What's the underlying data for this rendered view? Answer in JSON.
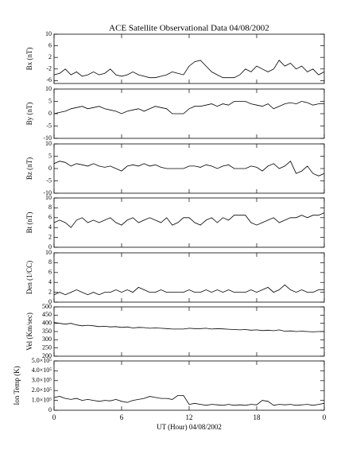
{
  "chart_data": [
    {
      "type": "line",
      "title": "ACE Satellite Observational Data   04/08/2002",
      "ylabel": "Bx (nT)",
      "ylim": [
        -7,
        10
      ],
      "yticks": [
        10,
        6,
        2,
        -2,
        -6
      ],
      "xlim": [
        0,
        24
      ],
      "color": "#000000",
      "x": [
        0,
        0.5,
        1,
        1.5,
        2,
        2.5,
        3,
        3.5,
        4,
        4.5,
        5,
        5.5,
        6,
        6.5,
        7,
        7.5,
        8,
        8.5,
        9,
        9.5,
        10,
        10.5,
        11,
        11.5,
        12,
        12.5,
        13,
        13.5,
        14,
        14.5,
        15,
        15.5,
        16,
        16.5,
        17,
        17.5,
        18,
        18.5,
        19,
        19.5,
        20,
        20.5,
        21,
        21.5,
        22,
        22.5,
        23,
        23.5,
        24
      ],
      "values": [
        -4,
        -3.5,
        -2,
        -4,
        -3,
        -4.5,
        -4,
        -3,
        -4,
        -3.5,
        -2,
        -4,
        -4.5,
        -4,
        -3,
        -4,
        -4.5,
        -5,
        -5,
        -4.5,
        -4,
        -3,
        -3.5,
        -4,
        -1,
        0.5,
        1,
        -1,
        -3,
        -4,
        -5,
        -5,
        -5,
        -4,
        -2,
        -3,
        -1,
        -2,
        -3,
        -2,
        1,
        -1,
        0,
        -2,
        -1,
        -3,
        -2,
        -4,
        -3
      ]
    },
    {
      "type": "line",
      "ylabel": "By (nT)",
      "ylim": [
        -10,
        10
      ],
      "yticks": [
        10,
        5,
        0,
        -5,
        -10
      ],
      "xlim": [
        0,
        24
      ],
      "color": "#000000",
      "x": [
        0,
        0.5,
        1,
        1.5,
        2,
        2.5,
        3,
        3.5,
        4,
        4.5,
        5,
        5.5,
        6,
        6.5,
        7,
        7.5,
        8,
        8.5,
        9,
        9.5,
        10,
        10.5,
        11,
        11.5,
        12,
        12.5,
        13,
        13.5,
        14,
        14.5,
        15,
        15.5,
        16,
        16.5,
        17,
        17.5,
        18,
        18.5,
        19,
        19.5,
        20,
        20.5,
        21,
        21.5,
        22,
        22.5,
        23,
        23.5,
        24
      ],
      "values": [
        0,
        0.5,
        1,
        2,
        2.5,
        3,
        2,
        2.5,
        3,
        2,
        1.5,
        1,
        0,
        1,
        1.5,
        2,
        1,
        2,
        3,
        2.5,
        2,
        0,
        0,
        0,
        2,
        3,
        3,
        3.5,
        4,
        3,
        4,
        3.5,
        5,
        5,
        5,
        4,
        3.5,
        3,
        4,
        2,
        3,
        4,
        4.5,
        4,
        5,
        4.5,
        3.5,
        4,
        4
      ]
    },
    {
      "type": "line",
      "ylabel": "Bz (nT)",
      "ylim": [
        -10,
        10
      ],
      "yticks": [
        10,
        5,
        0,
        -5,
        -10
      ],
      "xlim": [
        0,
        24
      ],
      "color": "#000000",
      "x": [
        0,
        0.5,
        1,
        1.5,
        2,
        2.5,
        3,
        3.5,
        4,
        4.5,
        5,
        5.5,
        6,
        6.5,
        7,
        7.5,
        8,
        8.5,
        9,
        9.5,
        10,
        10.5,
        11,
        11.5,
        12,
        12.5,
        13,
        13.5,
        14,
        14.5,
        15,
        15.5,
        16,
        16.5,
        17,
        17.5,
        18,
        18.5,
        19,
        19.5,
        20,
        20.5,
        21,
        21.5,
        22,
        22.5,
        23,
        23.5,
        24
      ],
      "values": [
        2,
        3,
        2.5,
        1,
        2,
        1.5,
        1,
        2,
        1,
        0.5,
        1,
        0,
        -1,
        1,
        1.5,
        1,
        2,
        1,
        1.5,
        0.5,
        0,
        0,
        0,
        0,
        1,
        1,
        0.5,
        1.5,
        1,
        0,
        1,
        1.5,
        0,
        0,
        0,
        1,
        0.5,
        -1,
        1,
        2,
        0,
        1,
        3,
        -2,
        -1,
        1,
        -2,
        -3,
        -2
      ]
    },
    {
      "type": "line",
      "ylabel": "Bt (nT)",
      "ylim": [
        0,
        10
      ],
      "yticks": [
        10,
        8,
        6,
        4,
        2,
        0
      ],
      "xlim": [
        0,
        24
      ],
      "color": "#000000",
      "x": [
        0,
        0.5,
        1,
        1.5,
        2,
        2.5,
        3,
        3.5,
        4,
        4.5,
        5,
        5.5,
        6,
        6.5,
        7,
        7.5,
        8,
        8.5,
        9,
        9.5,
        10,
        10.5,
        11,
        11.5,
        12,
        12.5,
        13,
        13.5,
        14,
        14.5,
        15,
        15.5,
        16,
        16.5,
        17,
        17.5,
        18,
        18.5,
        19,
        19.5,
        20,
        20.5,
        21,
        21.5,
        22,
        22.5,
        23,
        23.5,
        24
      ],
      "values": [
        5,
        5.5,
        5,
        4,
        5.5,
        6,
        5,
        5.5,
        5,
        5.5,
        6,
        5,
        4.5,
        5.5,
        6,
        5,
        5.5,
        6,
        5.5,
        5,
        6,
        4.5,
        5,
        6,
        6,
        5,
        4.5,
        5.5,
        6,
        5,
        6,
        5.5,
        6.5,
        6.5,
        6.5,
        5,
        4.5,
        5,
        5.5,
        6,
        5,
        5.5,
        6,
        6,
        6.5,
        6,
        6.5,
        6.5,
        7
      ]
    },
    {
      "type": "line",
      "ylabel": "Den (1/CC)",
      "ylim": [
        0,
        10
      ],
      "yticks": [
        10,
        8,
        6,
        4,
        2,
        0
      ],
      "xlim": [
        0,
        24
      ],
      "color": "#000000",
      "x": [
        0,
        0.5,
        1,
        1.5,
        2,
        2.5,
        3,
        3.5,
        4,
        4.5,
        5,
        5.5,
        6,
        6.5,
        7,
        7.5,
        8,
        8.5,
        9,
        9.5,
        10,
        10.5,
        11,
        11.5,
        12,
        12.5,
        13,
        13.5,
        14,
        14.5,
        15,
        15.5,
        16,
        16.5,
        17,
        17.5,
        18,
        18.5,
        19,
        19.5,
        20,
        20.5,
        21,
        21.5,
        22,
        22.5,
        23,
        23.5,
        24
      ],
      "values": [
        1.5,
        2,
        1.5,
        2,
        2.5,
        2,
        1.5,
        2,
        1.5,
        2,
        2,
        2.5,
        2,
        2.5,
        2,
        3,
        2.5,
        2,
        2,
        2.5,
        2,
        2,
        2,
        2,
        2.5,
        2,
        2,
        2.5,
        2,
        2.5,
        2,
        2.5,
        2,
        2,
        2,
        2.5,
        2,
        2.5,
        3,
        2,
        2.5,
        3.5,
        2.5,
        2,
        2.5,
        2,
        2,
        2.5,
        2.5
      ]
    },
    {
      "type": "line",
      "ylabel": "Vel (Km/sec)",
      "ylim": [
        200,
        500
      ],
      "yticks": [
        500,
        450,
        400,
        350,
        300,
        250,
        200
      ],
      "xlim": [
        0,
        24
      ],
      "color": "#000000",
      "x": [
        0,
        0.5,
        1,
        1.5,
        2,
        2.5,
        3,
        3.5,
        4,
        4.5,
        5,
        5.5,
        6,
        6.5,
        7,
        7.5,
        8,
        8.5,
        9,
        9.5,
        10,
        10.5,
        11,
        11.5,
        12,
        12.5,
        13,
        13.5,
        14,
        14.5,
        15,
        15.5,
        16,
        16.5,
        17,
        17.5,
        18,
        18.5,
        19,
        19.5,
        20,
        20.5,
        21,
        21.5,
        22,
        22.5,
        23,
        23.5,
        24
      ],
      "values": [
        405,
        400,
        395,
        400,
        390,
        385,
        388,
        385,
        380,
        382,
        378,
        380,
        375,
        378,
        372,
        375,
        374,
        370,
        372,
        370,
        368,
        365,
        365,
        365,
        370,
        368,
        368,
        370,
        365,
        368,
        366,
        364,
        362,
        360,
        362,
        358,
        360,
        356,
        358,
        355,
        360,
        352,
        354,
        350,
        352,
        350,
        348,
        350,
        350
      ]
    },
    {
      "type": "line",
      "ylabel": "Ion Temp (K)",
      "xlabel": "UT (Hour)  04/08/2002",
      "ylim": [
        0,
        500000
      ],
      "yticks": [
        {
          "value": 500000,
          "label": "5.0×10⁵"
        },
        {
          "value": 400000,
          "label": "4.0×10⁵"
        },
        {
          "value": 300000,
          "label": "3.0×10⁵"
        },
        {
          "value": 200000,
          "label": "2.0×10⁵"
        },
        {
          "value": 100000,
          "label": "1.0×10⁵"
        },
        0
      ],
      "xlim": [
        0,
        24
      ],
      "xticks": [
        0,
        6,
        12,
        18,
        {
          "value": 24,
          "label": "0"
        }
      ],
      "color": "#000000",
      "x": [
        0,
        0.5,
        1,
        1.5,
        2,
        2.5,
        3,
        3.5,
        4,
        4.5,
        5,
        5.5,
        6,
        6.5,
        7,
        7.5,
        8,
        8.5,
        9,
        9.5,
        10,
        10.5,
        11,
        11.5,
        12,
        12.5,
        13,
        13.5,
        14,
        14.5,
        15,
        15.5,
        16,
        16.5,
        17,
        17.5,
        18,
        18.5,
        19,
        19.5,
        20,
        20.5,
        21,
        21.5,
        22,
        22.5,
        23,
        23.5,
        24
      ],
      "values": [
        130000,
        140000,
        120000,
        110000,
        120000,
        100000,
        110000,
        100000,
        90000,
        100000,
        95000,
        110000,
        90000,
        80000,
        100000,
        110000,
        120000,
        140000,
        130000,
        120000,
        120000,
        110000,
        150000,
        150000,
        60000,
        70000,
        60000,
        50000,
        60000,
        55000,
        50000,
        60000,
        50000,
        55000,
        50000,
        60000,
        55000,
        100000,
        90000,
        50000,
        60000,
        55000,
        60000,
        50000,
        55000,
        60000,
        50000,
        60000,
        70000
      ]
    }
  ]
}
